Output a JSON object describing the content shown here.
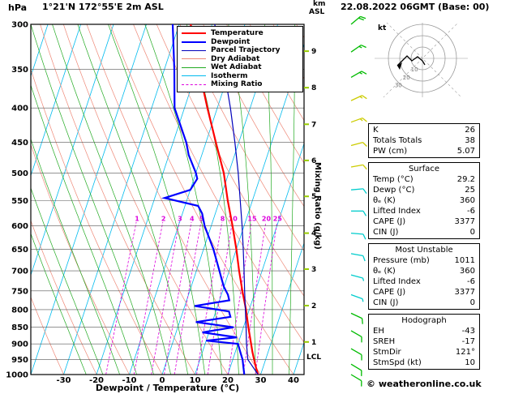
{
  "header": {
    "pressure_unit": "hPa",
    "title": "1°21'N 172°55'E 2m ASL",
    "alt_unit_line1": "km",
    "alt_unit_line2": "ASL",
    "date": "22.08.2022 06GMT (Base: 00)"
  },
  "axes": {
    "mixing_label": "Mixing Ratio (g/kg)",
    "lcl_label": "LCL",
    "lcl_pressure": 940,
    "km_ticks": [
      {
        "km": 1,
        "p": 894
      },
      {
        "km": 2,
        "p": 789
      },
      {
        "km": 3,
        "p": 696
      },
      {
        "km": 4,
        "p": 615
      },
      {
        "km": 5,
        "p": 542
      },
      {
        "km": 6,
        "p": 479
      },
      {
        "km": 7,
        "p": 423
      },
      {
        "km": 8,
        "p": 373
      },
      {
        "km": 9,
        "p": 329
      }
    ]
  },
  "legend": {
    "items": [
      {
        "label": "Temperature",
        "color": "#ff0000",
        "width": 2,
        "dash": false
      },
      {
        "label": "Dewpoint",
        "color": "#0000ff",
        "width": 2,
        "dash": false
      },
      {
        "label": "Parcel Trajectory",
        "color": "#0000bb",
        "width": 1,
        "dash": false
      },
      {
        "label": "Dry Adiabat",
        "color": "#ee8877",
        "width": 1,
        "dash": false
      },
      {
        "label": "Wet Adiabat",
        "color": "#22aa22",
        "width": 1,
        "dash": false
      },
      {
        "label": "Isotherm",
        "color": "#00bbee",
        "width": 1,
        "dash": false
      },
      {
        "label": "Mixing Ratio",
        "color": "#dd00dd",
        "width": 1,
        "dash": true
      }
    ]
  },
  "colors": {
    "grid": "#555555",
    "frame": "#000000",
    "km_tick": "#99cc00",
    "mixing_ratio": "#dd00dd",
    "isotherm": "#00bbee",
    "dry_adiabat": "#ee8877",
    "wet_adiabat": "#22aa22"
  },
  "hodograph": {
    "unit": "kt",
    "rings": [
      10,
      20,
      30
    ],
    "trace": [
      [
        3,
        8
      ],
      [
        0,
        3
      ],
      [
        -6,
        -2
      ],
      [
        -13,
        3
      ],
      [
        -19,
        -3
      ],
      [
        -26,
        4
      ],
      [
        -31,
        9
      ]
    ]
  },
  "barbs": [
    {
      "p": 300,
      "dir": 50,
      "spd": 20,
      "color": "#00bb00"
    },
    {
      "p": 330,
      "dir": 55,
      "spd": 15,
      "color": "#00bb00"
    },
    {
      "p": 360,
      "dir": 60,
      "spd": 15,
      "color": "#00bb00"
    },
    {
      "p": 390,
      "dir": 65,
      "spd": 15,
      "color": "#cccc00"
    },
    {
      "p": 420,
      "dir": 70,
      "spd": 15,
      "color": "#cccc00"
    },
    {
      "p": 455,
      "dir": 75,
      "spd": 10,
      "color": "#cccc00"
    },
    {
      "p": 490,
      "dir": 80,
      "spd": 10,
      "color": "#cccc00"
    },
    {
      "p": 530,
      "dir": 85,
      "spd": 10,
      "color": "#00cccc"
    },
    {
      "p": 570,
      "dir": 90,
      "spd": 10,
      "color": "#00cccc"
    },
    {
      "p": 615,
      "dir": 95,
      "spd": 10,
      "color": "#00cccc"
    },
    {
      "p": 660,
      "dir": 100,
      "spd": 10,
      "color": "#00cccc"
    },
    {
      "p": 710,
      "dir": 105,
      "spd": 5,
      "color": "#00cccc"
    },
    {
      "p": 760,
      "dir": 110,
      "spd": 5,
      "color": "#00cccc"
    },
    {
      "p": 810,
      "dir": 115,
      "spd": 10,
      "color": "#00bb00"
    },
    {
      "p": 860,
      "dir": 120,
      "spd": 10,
      "color": "#00bb00"
    },
    {
      "p": 915,
      "dir": 120,
      "spd": 10,
      "color": "#00bb00"
    },
    {
      "p": 965,
      "dir": 121,
      "spd": 10,
      "color": "#00bb00"
    },
    {
      "p": 1000,
      "dir": 121,
      "spd": 10,
      "color": "#00bb00"
    }
  ],
  "panel": {
    "sections": [
      {
        "title": "",
        "rows": [
          [
            "K",
            "26"
          ],
          [
            "Totals Totals",
            "38"
          ],
          [
            "PW (cm)",
            "5.07"
          ]
        ]
      },
      {
        "title": "Surface",
        "rows": [
          [
            "Temp (°C)",
            "29.2"
          ],
          [
            "Dewp (°C)",
            "25"
          ],
          [
            "θₑ (K)",
            "360"
          ],
          [
            "Lifted Index",
            "-6"
          ],
          [
            "CAPE (J)",
            "3377"
          ],
          [
            "CIN (J)",
            "0"
          ]
        ]
      },
      {
        "title": "Most Unstable",
        "rows": [
          [
            "Pressure (mb)",
            "1011"
          ],
          [
            "θₑ (K)",
            "360"
          ],
          [
            "Lifted Index",
            "-6"
          ],
          [
            "CAPE (J)",
            "3377"
          ],
          [
            "CIN (J)",
            "0"
          ]
        ]
      },
      {
        "title": "Hodograph",
        "rows": [
          [
            "EH",
            "-43"
          ],
          [
            "SREH",
            "-17"
          ],
          [
            "StmDir",
            "121°"
          ],
          [
            "StmSpd (kt)",
            "10"
          ]
        ]
      }
    ]
  },
  "footer": "© weatheronline.co.uk",
  "chart_data": {
    "type": "line",
    "title": "Skew-T log-P sounding",
    "x_axis": {
      "label": "Dewpoint / Temperature (°C)",
      "range": [
        -40,
        43
      ],
      "ticks": [
        -30,
        -20,
        -10,
        0,
        10,
        20,
        30,
        40
      ]
    },
    "y_axis": {
      "label": "hPa",
      "scale": "log",
      "range": [
        1000,
        300
      ],
      "ticks": [
        300,
        350,
        400,
        450,
        500,
        550,
        600,
        650,
        700,
        750,
        800,
        850,
        900,
        950,
        1000
      ]
    },
    "mixing_ratio_lines": [
      1,
      2,
      3,
      4,
      5,
      8,
      10,
      15,
      20,
      25
    ],
    "series": [
      {
        "name": "Temperature",
        "color": "#ff0000",
        "width": 2.2,
        "points": [
          [
            1000,
            29.2
          ],
          [
            975,
            27.8
          ],
          [
            950,
            26.5
          ],
          [
            925,
            25.2
          ],
          [
            900,
            24
          ],
          [
            850,
            21.5
          ],
          [
            800,
            19
          ],
          [
            750,
            16
          ],
          [
            700,
            13
          ],
          [
            650,
            10
          ],
          [
            600,
            6.5
          ],
          [
            550,
            2.5
          ],
          [
            500,
            -1.5
          ],
          [
            450,
            -7
          ],
          [
            400,
            -13
          ],
          [
            350,
            -19.5
          ],
          [
            300,
            -26.5
          ]
        ]
      },
      {
        "name": "Dewpoint",
        "color": "#0000ff",
        "width": 2.2,
        "points": [
          [
            1000,
            25
          ],
          [
            975,
            24
          ],
          [
            950,
            23
          ],
          [
            925,
            21.5
          ],
          [
            900,
            20
          ],
          [
            890,
            10
          ],
          [
            880,
            19
          ],
          [
            865,
            8
          ],
          [
            850,
            17
          ],
          [
            835,
            5
          ],
          [
            820,
            15
          ],
          [
            805,
            14
          ],
          [
            790,
            3
          ],
          [
            775,
            13
          ],
          [
            760,
            12
          ],
          [
            740,
            10
          ],
          [
            720,
            8.5
          ],
          [
            700,
            7
          ],
          [
            650,
            3
          ],
          [
            600,
            -2
          ],
          [
            575,
            -4
          ],
          [
            560,
            -6
          ],
          [
            545,
            -17
          ],
          [
            530,
            -10
          ],
          [
            510,
            -9
          ],
          [
            500,
            -10
          ],
          [
            470,
            -14
          ],
          [
            450,
            -16
          ],
          [
            400,
            -23
          ],
          [
            350,
            -27
          ],
          [
            300,
            -32
          ]
        ]
      },
      {
        "name": "Parcel Trajectory",
        "color": "#0000bb",
        "width": 1.2,
        "points": [
          [
            1000,
            29.2
          ],
          [
            950,
            24.6
          ],
          [
            900,
            22.6
          ],
          [
            850,
            20.8
          ],
          [
            800,
            18.8
          ],
          [
            750,
            16.7
          ],
          [
            700,
            14.5
          ],
          [
            650,
            12.1
          ],
          [
            600,
            9.4
          ],
          [
            550,
            6.3
          ],
          [
            500,
            2.9
          ],
          [
            450,
            -1.2
          ],
          [
            400,
            -6
          ],
          [
            350,
            -11.9
          ],
          [
            300,
            -19.2
          ]
        ]
      }
    ]
  }
}
